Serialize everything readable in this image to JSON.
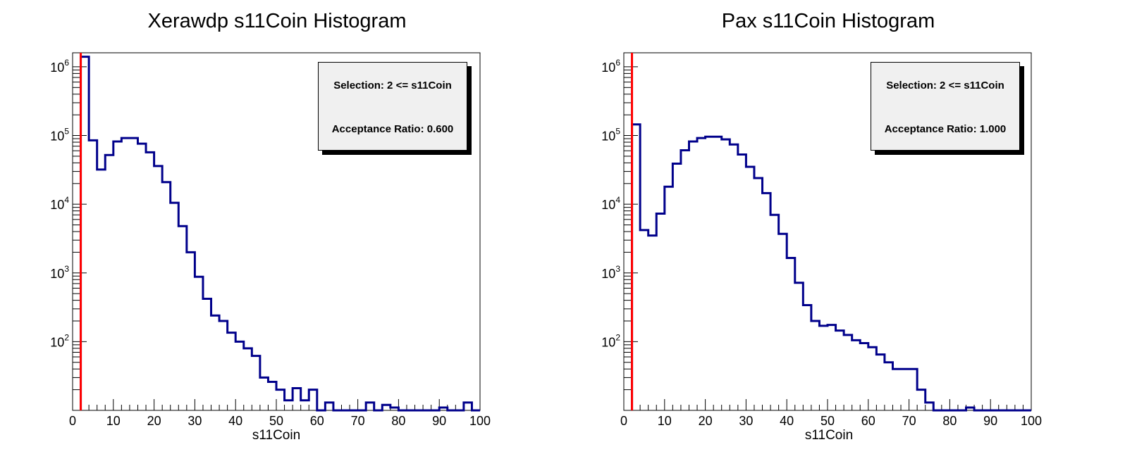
{
  "chart_data": [
    {
      "type": "histogram",
      "title": "Xerawdp s11Coin Histogram",
      "xlabel": "s11Coin",
      "ylabel": "",
      "xlim": [
        0,
        100
      ],
      "ylim": [
        10,
        1600000
      ],
      "log_y": true,
      "grid": false,
      "bin_width": 2,
      "x_ticks": [
        "0",
        "10",
        "20",
        "30",
        "40",
        "50",
        "60",
        "70",
        "80",
        "90",
        "100"
      ],
      "y_ticks": [
        {
          "base": "10",
          "exp": "2",
          "value": 100
        },
        {
          "base": "10",
          "exp": "3",
          "value": 1000
        },
        {
          "base": "10",
          "exp": "4",
          "value": 10000
        },
        {
          "base": "10",
          "exp": "5",
          "value": 100000
        },
        {
          "base": "10",
          "exp": "6",
          "value": 1000000
        }
      ],
      "series": [
        {
          "color": "#00008b",
          "bin_edges": [
            2,
            4,
            6,
            8,
            10,
            12,
            14,
            16,
            18,
            20,
            22,
            24,
            26,
            28,
            30,
            32,
            34,
            36,
            38,
            40,
            42,
            44,
            46,
            48,
            50,
            52,
            54,
            56,
            58,
            60,
            62,
            64,
            66,
            68,
            70,
            72,
            74,
            76,
            78,
            80,
            82,
            84,
            86,
            88,
            90,
            92,
            94,
            96,
            98,
            100
          ],
          "values": [
            1400000,
            85000,
            32000,
            52000,
            82000,
            92000,
            92000,
            76000,
            57000,
            36000,
            21000,
            10500,
            4800,
            2000,
            880,
            420,
            240,
            200,
            135,
            100,
            80,
            62,
            30,
            26,
            20,
            14,
            21,
            14,
            20,
            10,
            13,
            10,
            10,
            10,
            10,
            13,
            10,
            12,
            11,
            10,
            10,
            10,
            10,
            10,
            11,
            10,
            10,
            13,
            10
          ]
        }
      ],
      "cut_line": {
        "x": 2,
        "color": "#ff0000"
      },
      "stats_box": {
        "selection": "Selection: 2 <= s11Coin",
        "acceptance": "Acceptance Ratio: 0.600"
      }
    },
    {
      "type": "histogram",
      "title": "Pax s11Coin Histogram",
      "xlabel": "s11Coin",
      "ylabel": "",
      "xlim": [
        0,
        100
      ],
      "ylim": [
        10,
        1600000
      ],
      "log_y": true,
      "grid": false,
      "bin_width": 2,
      "x_ticks": [
        "0",
        "10",
        "20",
        "30",
        "40",
        "50",
        "60",
        "70",
        "80",
        "90",
        "100"
      ],
      "y_ticks": [
        {
          "base": "10",
          "exp": "2",
          "value": 100
        },
        {
          "base": "10",
          "exp": "3",
          "value": 1000
        },
        {
          "base": "10",
          "exp": "4",
          "value": 10000
        },
        {
          "base": "10",
          "exp": "5",
          "value": 100000
        },
        {
          "base": "10",
          "exp": "6",
          "value": 1000000
        }
      ],
      "series": [
        {
          "color": "#00008b",
          "bin_edges": [
            2,
            4,
            6,
            8,
            10,
            12,
            14,
            16,
            18,
            20,
            22,
            24,
            26,
            28,
            30,
            32,
            34,
            36,
            38,
            40,
            42,
            44,
            46,
            48,
            50,
            52,
            54,
            56,
            58,
            60,
            62,
            64,
            66,
            68,
            70,
            72,
            74,
            76,
            78,
            80,
            82,
            84,
            86,
            88,
            90,
            92,
            94,
            96,
            98,
            100
          ],
          "values": [
            145000,
            4200,
            3500,
            7300,
            18000,
            39000,
            61000,
            82000,
            92000,
            96000,
            96000,
            88000,
            74000,
            53000,
            35000,
            24000,
            14500,
            7000,
            3700,
            1650,
            720,
            340,
            200,
            170,
            175,
            145,
            125,
            105,
            95,
            83,
            65,
            50,
            40,
            40,
            40,
            20,
            13,
            10,
            10,
            10,
            10,
            11,
            10,
            10,
            10,
            10,
            10,
            10,
            10
          ]
        }
      ],
      "cut_line": {
        "x": 2,
        "color": "#ff0000"
      },
      "stats_box": {
        "selection": "Selection: 2 <= s11Coin",
        "acceptance": "Acceptance Ratio: 1.000"
      }
    }
  ]
}
